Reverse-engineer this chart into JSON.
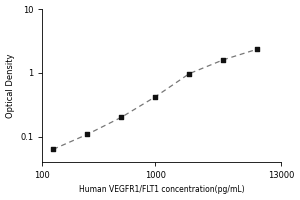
{
  "xlabel": "Human VEGFR1/FLT1 concentration(pg/mL)",
  "ylabel": "Optical Density",
  "x_data": [
    125,
    250,
    500,
    1000,
    2000,
    4000,
    8000
  ],
  "y_data": [
    0.063,
    0.108,
    0.2,
    0.42,
    0.97,
    1.6,
    2.35
  ],
  "xlim": [
    100,
    13000
  ],
  "ylim": [
    0.04,
    10
  ],
  "xticks": [
    100,
    1000,
    13000
  ],
  "xtick_labels": [
    "100",
    "1000",
    "13000"
  ],
  "yticks": [
    0.1,
    1,
    10
  ],
  "ytick_labels": [
    "0.1",
    "1",
    "10"
  ],
  "line_color": "#777777",
  "marker_color": "#111111",
  "background_color": "#ffffff",
  "xlabel_fontsize": 5.5,
  "ylabel_fontsize": 6,
  "tick_fontsize": 6
}
